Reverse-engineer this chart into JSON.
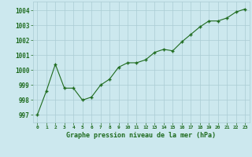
{
  "x": [
    0,
    1,
    2,
    3,
    4,
    5,
    6,
    7,
    8,
    9,
    10,
    11,
    12,
    13,
    14,
    15,
    16,
    17,
    18,
    19,
    20,
    21,
    22,
    23
  ],
  "y": [
    997.0,
    998.6,
    1000.4,
    998.8,
    998.8,
    998.0,
    998.2,
    999.0,
    999.4,
    1000.2,
    1000.5,
    1000.5,
    1000.7,
    1001.2,
    1001.4,
    1001.3,
    1001.9,
    1002.4,
    1002.9,
    1003.3,
    1003.3,
    1003.5,
    1003.9,
    1004.1
  ],
  "line_color": "#1e6b1e",
  "marker": "+",
  "bg_color": "#cce8ee",
  "grid_color": "#aaccd4",
  "xlabel": "Graphe pression niveau de la mer (hPa)",
  "xlabel_color": "#1e6b1e",
  "tick_color": "#1e6b1e",
  "ylim": [
    996.5,
    1004.6
  ],
  "yticks": [
    997,
    998,
    999,
    1000,
    1001,
    1002,
    1003,
    1004
  ],
  "xlim": [
    -0.5,
    23.5
  ],
  "xticks": [
    0,
    1,
    2,
    3,
    4,
    5,
    6,
    7,
    8,
    9,
    10,
    11,
    12,
    13,
    14,
    15,
    16,
    17,
    18,
    19,
    20,
    21,
    22,
    23
  ],
  "xtick_labels": [
    "0",
    "1",
    "2",
    "3",
    "4",
    "5",
    "6",
    "7",
    "8",
    "9",
    "10",
    "11",
    "12",
    "13",
    "14",
    "15",
    "16",
    "17",
    "18",
    "19",
    "20",
    "21",
    "22",
    "23"
  ],
  "linewidth": 0.8,
  "markersize": 3,
  "markeredgewidth": 1.0
}
